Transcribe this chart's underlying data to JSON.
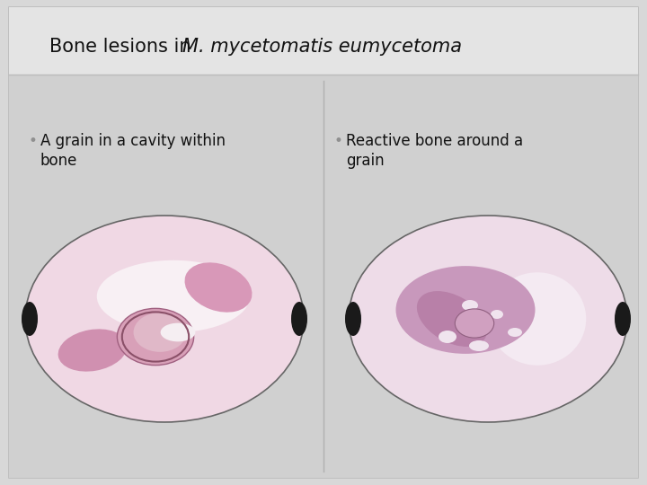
{
  "bg_color": "#d8d8d8",
  "header_bg": "#e4e4e4",
  "content_bg": "#d0d0d0",
  "header_line_color": "#bbbbbb",
  "divider_color": "#b0b0b0",
  "bullet_color": "#909090",
  "text_color": "#111111",
  "font_size_title": 15,
  "font_size_bullet": 12,
  "bullet1_line1": "A grain in a cavity within",
  "bullet1_line2": "bone",
  "bullet2_line1": "Reactive bone around a",
  "bullet2_line2": "grain",
  "title_normal": "Bone lesions in ",
  "title_italic": "M. mycetomatis eumycetoma"
}
